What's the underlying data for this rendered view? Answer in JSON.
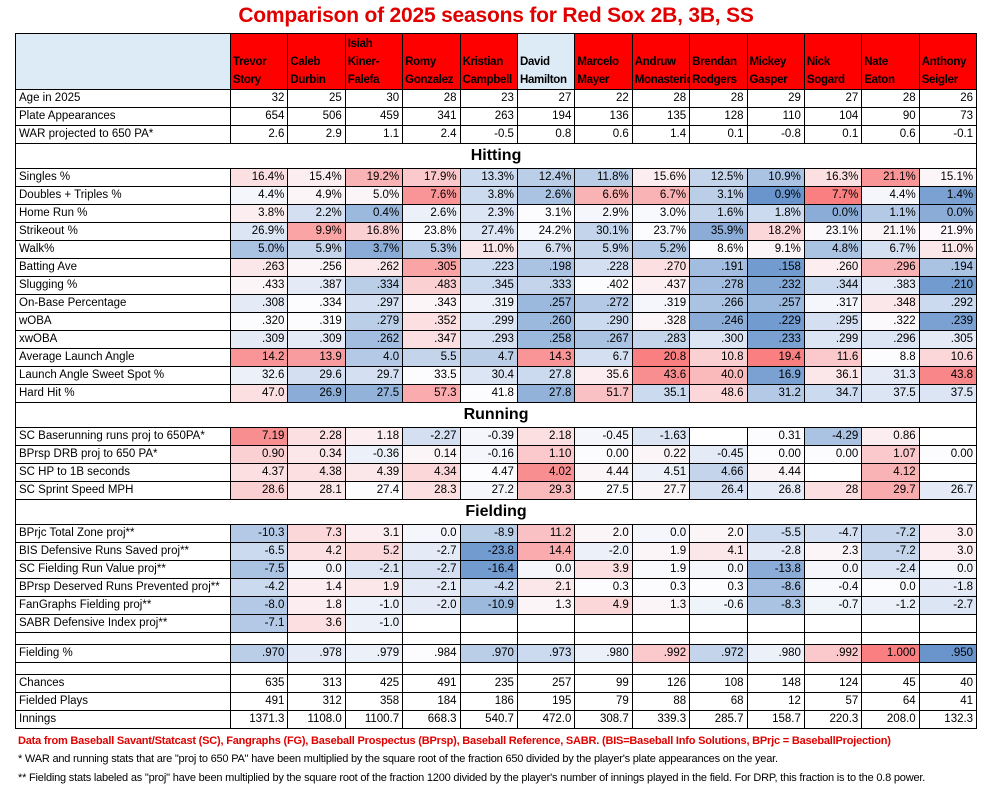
{
  "title": "Comparison of 2025 seasons for Red Sox 2B, 3B, SS",
  "colors": {
    "header_red": "#FF0000",
    "header_blue": "#DDEBF7",
    "heat_red": "#F8696B",
    "heat_blue": "#5A8AC6",
    "heat_mid": "#FCFCFF",
    "title_red": "#E00000"
  },
  "players": [
    {
      "name": "Trevor Story",
      "header_color": "#FF0000"
    },
    {
      "name": "Caleb Durbin",
      "header_color": "#FF0000"
    },
    {
      "name": "Isiah Kiner-Falefa",
      "header_color": "#FF0000"
    },
    {
      "name": "Romy Gonzalez",
      "header_color": "#FF0000"
    },
    {
      "name": "Kristian Campbell",
      "header_color": "#FF0000"
    },
    {
      "name": "David Hamilton",
      "header_color": "#DDEBF7"
    },
    {
      "name": "Marcelo Mayer",
      "header_color": "#FF0000"
    },
    {
      "name": "Andruw Monasterio",
      "header_color": "#FF0000"
    },
    {
      "name": "Brendan Rodgers",
      "header_color": "#FF0000"
    },
    {
      "name": "Mickey Gasper",
      "header_color": "#FF0000"
    },
    {
      "name": "Nick Sogard",
      "header_color": "#FF0000"
    },
    {
      "name": "Nate Eaton",
      "header_color": "#FF0000"
    },
    {
      "name": "Anthony Seigler",
      "header_color": "#FF0000"
    }
  ],
  "rows": [
    {
      "type": "data",
      "label": "Age in 2025",
      "values": [
        "32",
        "25",
        "30",
        "28",
        "23",
        "27",
        "22",
        "28",
        "28",
        "29",
        "27",
        "28",
        "26"
      ]
    },
    {
      "type": "data",
      "label": "Plate Appearances",
      "values": [
        "654",
        "506",
        "459",
        "341",
        "263",
        "194",
        "136",
        "135",
        "128",
        "110",
        "104",
        "90",
        "73"
      ]
    },
    {
      "type": "data",
      "label": "WAR projected to 650 PA*",
      "values": [
        "2.6",
        "2.9",
        "1.1",
        "2.4",
        "-0.5",
        "0.8",
        "0.6",
        "1.4",
        "0.1",
        "-0.8",
        "0.1",
        "0.6",
        "-0.1"
      ]
    },
    {
      "type": "section",
      "label": "Hitting"
    },
    {
      "type": "data",
      "label": "Singles %",
      "values": [
        "16.4%",
        "15.4%",
        "19.2%",
        "17.9%",
        "13.3%",
        "12.4%",
        "11.8%",
        "15.6%",
        "12.5%",
        "10.9%",
        "16.3%",
        "21.1%",
        "15.1%"
      ],
      "heat": [
        0.2,
        0.1,
        0.5,
        0.35,
        -0.3,
        -0.4,
        -0.4,
        0.1,
        -0.35,
        -0.5,
        0.2,
        0.7,
        0.05
      ]
    },
    {
      "type": "data",
      "label": "Doubles + Triples %",
      "values": [
        "4.4%",
        "4.9%",
        "5.0%",
        "7.6%",
        "3.8%",
        "2.6%",
        "6.6%",
        "6.7%",
        "3.1%",
        "0.9%",
        "7.7%",
        "4.4%",
        "1.4%"
      ],
      "heat": [
        -0.05,
        0.05,
        0.05,
        0.7,
        -0.3,
        -0.5,
        0.5,
        0.5,
        -0.4,
        -0.9,
        0.85,
        -0.05,
        -0.8
      ]
    },
    {
      "type": "data",
      "label": "Home Run %",
      "values": [
        "3.8%",
        "2.2%",
        "0.4%",
        "2.6%",
        "2.3%",
        "3.1%",
        "2.9%",
        "3.0%",
        "1.6%",
        "1.8%",
        "0.0%",
        "1.1%",
        "0.0%"
      ],
      "heat": [
        0.1,
        -0.25,
        -0.6,
        -0.1,
        -0.2,
        0,
        -0.05,
        -0.03,
        -0.35,
        -0.3,
        -0.7,
        -0.45,
        -0.7
      ]
    },
    {
      "type": "data",
      "label": "Strikeout %",
      "values": [
        "26.9%",
        "9.9%",
        "16.8%",
        "23.8%",
        "27.4%",
        "24.2%",
        "30.1%",
        "23.7%",
        "35.9%",
        "18.2%",
        "23.1%",
        "21.1%",
        "21.9%"
      ],
      "heat": [
        -0.2,
        0.6,
        0.3,
        0,
        -0.2,
        -0.02,
        -0.35,
        0,
        -0.7,
        0.25,
        0.02,
        0.05,
        0.03
      ]
    },
    {
      "type": "data",
      "label": "Walk%",
      "values": [
        "5.0%",
        "5.9%",
        "3.7%",
        "5.3%",
        "11.0%",
        "6.7%",
        "5.9%",
        "5.2%",
        "8.6%",
        "9.1%",
        "4.8%",
        "6.7%",
        "11.0%"
      ],
      "heat": [
        -0.5,
        -0.35,
        -0.7,
        -0.45,
        0.15,
        -0.25,
        -0.35,
        -0.45,
        0,
        0.05,
        -0.5,
        -0.25,
        0.15
      ]
    },
    {
      "type": "data",
      "label": "Batting Ave",
      "values": [
        ".263",
        ".256",
        ".262",
        ".305",
        ".223",
        ".198",
        ".228",
        ".270",
        ".191",
        ".158",
        ".260",
        ".296",
        ".194"
      ],
      "heat": [
        0.15,
        0.05,
        0.15,
        0.6,
        -0.3,
        -0.5,
        -0.25,
        0.2,
        -0.55,
        -0.85,
        0.1,
        0.5,
        -0.5
      ]
    },
    {
      "type": "data",
      "label": "Slugging %",
      "values": [
        ".433",
        ".387",
        ".334",
        ".483",
        ".345",
        ".333",
        ".402",
        ".437",
        ".278",
        ".232",
        ".344",
        ".383",
        ".210"
      ],
      "heat": [
        0.05,
        -0.15,
        -0.4,
        0.3,
        -0.3,
        -0.35,
        0,
        0.08,
        -0.55,
        -0.75,
        -0.3,
        -0.15,
        -0.85
      ]
    },
    {
      "type": "data",
      "label": "On-Base Percentage",
      "values": [
        ".308",
        ".334",
        ".297",
        ".343",
        ".319",
        ".257",
        ".272",
        ".319",
        ".266",
        ".257",
        ".317",
        ".348",
        ".292"
      ],
      "heat": [
        -0.15,
        0,
        -0.25,
        0.05,
        -0.1,
        -0.6,
        -0.45,
        -0.05,
        -0.5,
        -0.6,
        -0.05,
        0.15,
        -0.3
      ]
    },
    {
      "type": "data",
      "label": "wOBA",
      "values": [
        ".320",
        ".319",
        ".279",
        ".352",
        ".299",
        ".260",
        ".290",
        ".328",
        ".246",
        ".229",
        ".295",
        ".322",
        ".239"
      ],
      "heat": [
        0,
        0,
        -0.4,
        0.2,
        -0.2,
        -0.6,
        -0.3,
        0.05,
        -0.7,
        -0.85,
        -0.25,
        0.02,
        -0.8
      ]
    },
    {
      "type": "data",
      "label": "xwOBA",
      "values": [
        ".309",
        ".309",
        ".262",
        ".347",
        ".293",
        ".258",
        ".267",
        ".283",
        ".300",
        ".233",
        ".299",
        ".296",
        ".305"
      ],
      "heat": [
        -0.15,
        -0.15,
        -0.55,
        0.2,
        -0.25,
        -0.6,
        -0.5,
        -0.35,
        -0.2,
        -0.8,
        -0.2,
        -0.2,
        -0.15
      ]
    },
    {
      "type": "data",
      "label": "Average Launch Angle",
      "values": [
        "14.2",
        "13.9",
        "4.0",
        "5.5",
        "4.7",
        "14.3",
        "6.7",
        "20.8",
        "10.8",
        "19.4",
        "11.6",
        "8.8",
        "10.6"
      ],
      "heat": [
        0.7,
        0.65,
        -0.45,
        -0.35,
        -0.4,
        0.7,
        -0.25,
        0.85,
        0.3,
        0.85,
        0.35,
        0,
        0.25
      ]
    },
    {
      "type": "data",
      "label": "Launch Angle Sweet Spot %",
      "values": [
        "32.6",
        "29.6",
        "29.7",
        "33.5",
        "30.4",
        "27.8",
        "35.6",
        "43.6",
        "40.0",
        "16.9",
        "36.1",
        "31.3",
        "43.8"
      ],
      "heat": [
        -0.1,
        -0.25,
        -0.25,
        0,
        -0.2,
        -0.3,
        0.1,
        0.75,
        0.45,
        -0.8,
        0.15,
        -0.15,
        0.8
      ]
    },
    {
      "type": "data",
      "label": "Hard Hit %",
      "values": [
        "47.0",
        "26.9",
        "27.5",
        "57.3",
        "41.8",
        "27.8",
        "51.7",
        "35.1",
        "48.6",
        "31.2",
        "34.7",
        "37.5",
        "37.5"
      ],
      "heat": [
        0.2,
        -0.7,
        -0.65,
        0.55,
        0,
        -0.65,
        0.4,
        -0.3,
        0.25,
        -0.45,
        -0.3,
        -0.2,
        -0.2
      ]
    },
    {
      "type": "section",
      "label": "Running"
    },
    {
      "type": "data",
      "label": "SC Baserunning runs proj to 650PA*",
      "values": [
        "7.19",
        "2.28",
        "1.18",
        "-2.27",
        "-0.39",
        "2.18",
        "-0.45",
        "-1.63",
        "",
        "0.31",
        "-4.29",
        "0.86",
        ""
      ],
      "heat": [
        0.75,
        0.2,
        0.1,
        -0.25,
        -0.05,
        0.2,
        -0.05,
        -0.2,
        null,
        0,
        -0.5,
        0.1,
        null
      ]
    },
    {
      "type": "data",
      "label": "BPrsp DRB proj to 650 PA*",
      "values": [
        "0.90",
        "0.34",
        "-0.36",
        "0.14",
        "-0.16",
        "1.10",
        "0.00",
        "0.22",
        "-0.45",
        "0.00",
        "0.00",
        "1.07",
        "0.00"
      ],
      "heat": [
        0.3,
        0.15,
        -0.1,
        0.05,
        -0.05,
        0.35,
        0,
        0.05,
        -0.15,
        0,
        0,
        0.35,
        0
      ]
    },
    {
      "type": "data",
      "label": "SC HP to 1B seconds",
      "values": [
        "4.37",
        "4.38",
        "4.39",
        "4.34",
        "4.47",
        "4.02",
        "4.44",
        "4.51",
        "4.66",
        "4.44",
        "",
        "4.12",
        ""
      ],
      "heat": [
        0.2,
        0.2,
        0.15,
        0.25,
        0,
        0.75,
        0.05,
        -0.1,
        -0.35,
        0.05,
        null,
        0.5,
        null
      ]
    },
    {
      "type": "data",
      "label": "SC Sprint Speed MPH",
      "values": [
        "28.6",
        "28.1",
        "27.4",
        "28.3",
        "27.2",
        "29.3",
        "27.5",
        "27.7",
        "26.4",
        "26.8",
        "28",
        "29.7",
        "26.7"
      ],
      "heat": [
        0.3,
        0.15,
        0,
        0.2,
        -0.05,
        0.45,
        0,
        0.05,
        -0.25,
        -0.15,
        0.2,
        0.55,
        -0.15
      ]
    },
    {
      "type": "section",
      "label": "Fielding"
    },
    {
      "type": "data",
      "label": "BPrjc Total Zone proj**",
      "values": [
        "-10.3",
        "7.3",
        "3.1",
        "0.0",
        "-8.9",
        "11.2",
        "2.0",
        "0.0",
        "2.0",
        "-5.5",
        "-4.7",
        "-7.2",
        "3.0"
      ],
      "heat": [
        -0.45,
        0.25,
        0.1,
        -0.05,
        -0.4,
        0.4,
        0.05,
        -0.05,
        0.05,
        -0.3,
        -0.25,
        -0.35,
        0.1
      ]
    },
    {
      "type": "data",
      "label": "BIS Defensive Runs Saved proj**",
      "values": [
        "-6.5",
        "4.2",
        "5.2",
        "-2.7",
        "-23.8",
        "14.4",
        "-2.0",
        "1.9",
        "4.1",
        "-2.8",
        "2.3",
        "-7.2",
        "3.0"
      ],
      "heat": [
        -0.3,
        0.2,
        0.25,
        -0.15,
        -0.85,
        0.55,
        -0.1,
        0.05,
        0.15,
        -0.15,
        0.05,
        -0.35,
        0.1
      ]
    },
    {
      "type": "data",
      "label": "SC Fielding Run Value proj**",
      "values": [
        "-7.5",
        "0.0",
        "-2.1",
        "-2.7",
        "-16.4",
        "0.0",
        "3.9",
        "1.9",
        "0.0",
        "-13.8",
        "0.0",
        "-2.4",
        "0.0"
      ],
      "heat": [
        -0.5,
        -0.05,
        -0.2,
        -0.25,
        -0.85,
        -0.05,
        0.2,
        -0.02,
        -0.05,
        -0.7,
        -0.05,
        -0.2,
        -0.05
      ]
    },
    {
      "type": "data",
      "label": "BPrsp Deserved Runs Prevented proj**",
      "values": [
        "-4.2",
        "1.4",
        "1.9",
        "-2.1",
        "-4.2",
        "2.1",
        "0.3",
        "0.3",
        "0.3",
        "-8.6",
        "-0.4",
        "0.0",
        "-1.8"
      ],
      "heat": [
        -0.3,
        0.1,
        0.15,
        -0.15,
        -0.3,
        0.15,
        0,
        0,
        0,
        -0.55,
        -0.03,
        0,
        -0.15
      ]
    },
    {
      "type": "data",
      "label": "FanGraphs Fielding proj**",
      "values": [
        "-8.0",
        "1.8",
        "-1.0",
        "-2.0",
        "-10.9",
        "1.3",
        "4.9",
        "1.3",
        "-0.6",
        "-8.3",
        "-0.7",
        "-1.2",
        "-2.7"
      ],
      "heat": [
        -0.45,
        0.1,
        -0.1,
        -0.15,
        -0.6,
        0.05,
        0.25,
        0.05,
        -0.08,
        -0.5,
        -0.08,
        -0.1,
        -0.2
      ]
    },
    {
      "type": "data",
      "label": "SABR Defensive Index proj**",
      "values": [
        "-7.1",
        "3.6",
        "-1.0",
        "",
        "",
        "",
        "",
        "",
        "",
        "",
        "",
        "",
        ""
      ],
      "heat": [
        -0.45,
        0.2,
        -0.1,
        null,
        null,
        null,
        null,
        null,
        null,
        null,
        null,
        null,
        null
      ]
    },
    {
      "type": "blank",
      "label": "",
      "values": [
        "",
        "",
        "",
        "",
        "",
        "",
        "",
        "",
        "",
        "",
        "",
        "",
        ""
      ]
    },
    {
      "type": "data",
      "label": "Fielding %",
      "values": [
        ".970",
        ".978",
        ".979",
        ".984",
        ".970",
        ".973",
        ".980",
        ".992",
        ".972",
        ".980",
        ".992",
        "1.000",
        ".950"
      ],
      "heat": [
        -0.4,
        -0.15,
        -0.1,
        0,
        -0.4,
        -0.3,
        -0.1,
        0.35,
        -0.35,
        -0.1,
        0.35,
        0.85,
        -0.9
      ]
    },
    {
      "type": "blank",
      "label": "",
      "values": [
        "",
        "",
        "",
        "",
        "",
        "",
        "",
        "",
        "",
        "",
        "",
        "",
        ""
      ]
    },
    {
      "type": "data",
      "label": "Chances",
      "values": [
        "635",
        "313",
        "425",
        "491",
        "235",
        "257",
        "99",
        "126",
        "108",
        "148",
        "124",
        "45",
        "40"
      ]
    },
    {
      "type": "data",
      "label": "Fielded Plays",
      "values": [
        "491",
        "312",
        "358",
        "184",
        "186",
        "195",
        "79",
        "88",
        "68",
        "12",
        "57",
        "64",
        "41"
      ]
    },
    {
      "type": "data",
      "label": "Innings",
      "values": [
        "1371.3",
        "1108.0",
        "1100.7",
        "668.3",
        "540.7",
        "472.0",
        "308.7",
        "339.3",
        "285.7",
        "158.7",
        "220.3",
        "208.0",
        "132.3"
      ]
    }
  ],
  "notes": [
    "Data from Baseball Savant/Statcast (SC), Fangraphs (FG), Baseball Prospectus (BPrsp), Baseball Reference, SABR. (BIS=Baseball Info Solutions, BPrjc = BaseballProjection)",
    "* WAR and running stats that are \"proj to 650 PA\" have been multiplied by the square root of the fraction 650 divided by the player's plate appearances on the year.",
    "** Fielding stats labeled as \"proj\" have been multiplied by the square root of the fraction 1200 divided by the player's number of innings played in the field. For DRP, this fraction is to the 0.8 power."
  ]
}
